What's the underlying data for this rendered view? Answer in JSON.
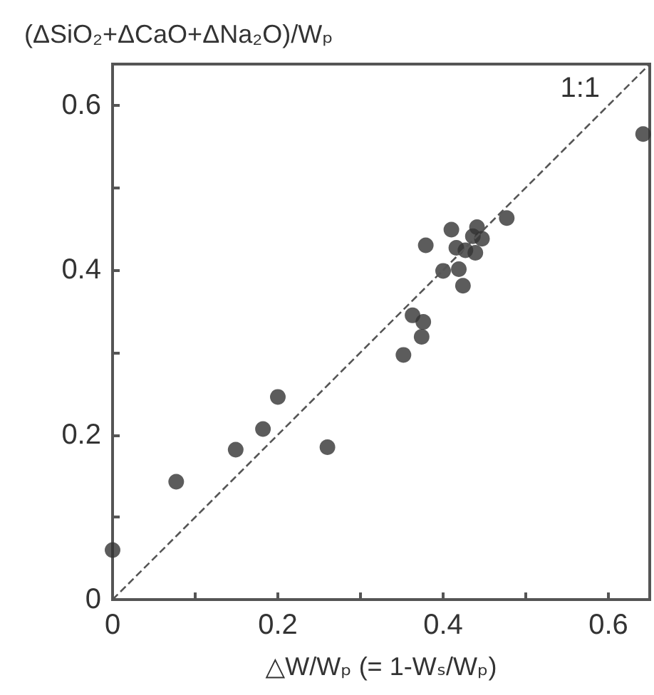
{
  "chart_data": {
    "type": "scatter",
    "xlabel": "△W/Wₚ (= 1-Wₛ/Wₚ)",
    "ylabel": "(ΔSiO₂+ΔCaO+ΔNa₂O)/Wₚ",
    "annotations": [
      "1:1"
    ],
    "xlim": [
      0,
      0.65
    ],
    "ylim": [
      0,
      0.65
    ],
    "xticks": [
      0,
      {
        "value": 0.1,
        "label": null
      },
      0.2,
      {
        "value": 0.3,
        "label": null
      },
      0.4,
      {
        "value": 0.5,
        "label": null
      },
      0.6
    ],
    "yticks": [
      0,
      {
        "value": 0.1,
        "label": null
      },
      0.2,
      {
        "value": 0.3,
        "label": null
      },
      0.4,
      {
        "value": 0.5,
        "label": null
      },
      0.6
    ],
    "grid": false,
    "marker": "circle",
    "series": [
      {
        "type": "line",
        "color": "#555555",
        "line_style": "dashed",
        "marker": "none",
        "x": [
          0,
          0.65
        ],
        "values": [
          0,
          0.65
        ]
      },
      {
        "color": "#333333",
        "x": [
          0.0,
          0.077,
          0.149,
          0.182,
          0.2,
          0.26,
          0.352,
          0.374,
          0.376,
          0.363,
          0.379,
          0.41,
          0.4,
          0.419,
          0.424,
          0.416,
          0.427,
          0.439,
          0.436,
          0.441,
          0.447,
          0.477,
          0.642
        ],
        "values": [
          0.06,
          0.143,
          0.182,
          0.207,
          0.246,
          0.185,
          0.297,
          0.319,
          0.337,
          0.345,
          0.43,
          0.449,
          0.399,
          0.401,
          0.381,
          0.427,
          0.424,
          0.421,
          0.441,
          0.452,
          0.438,
          0.463,
          0.565
        ]
      }
    ]
  }
}
